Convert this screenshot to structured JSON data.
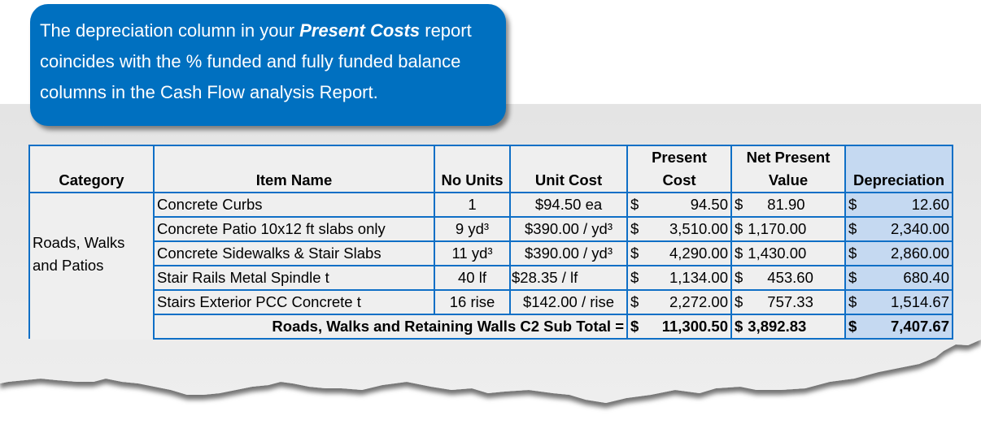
{
  "callout": {
    "text_before": "The depreciation column in your ",
    "emphasis": "Present Costs",
    "text_after": " report coincides with the % funded and fully funded balance columns in the Cash Flow analysis Report.",
    "color": "#0070c0"
  },
  "table": {
    "headers": [
      "Category",
      "Item Name",
      "No Units",
      "Unit Cost",
      "Present Cost",
      "Net Present Value",
      "Depreciation"
    ],
    "category": "Roads, Walks and Patios",
    "currency": "$",
    "rows": [
      {
        "item": "Concrete Curbs",
        "units": "1",
        "unit_cost": "$94.50 ea",
        "present_cost": "94.50",
        "npv": "81.90",
        "depreciation": "12.60"
      },
      {
        "item": "Concrete Patio 10x12 ft slabs only",
        "units": "9 yd³",
        "unit_cost": "$390.00 / yd³",
        "present_cost": "3,510.00",
        "npv": "1,170.00",
        "depreciation": "2,340.00"
      },
      {
        "item": "Concrete Sidewalks & Stair Slabs",
        "units": "11 yd³",
        "unit_cost": "$390.00 / yd³",
        "present_cost": "4,290.00",
        "npv": "1,430.00",
        "depreciation": "2,860.00"
      },
      {
        "item": "Stair Rails Metal Spindle t",
        "units": "40 lf",
        "unit_cost": "$28.35 / lf",
        "present_cost": "1,134.00",
        "npv": "453.60",
        "depreciation": "680.40"
      },
      {
        "item": "Stairs Exterior PCC Concrete t",
        "units": "16 rise",
        "unit_cost": "$142.00 / rise",
        "present_cost": "2,272.00",
        "npv": "757.33",
        "depreciation": "1,514.67"
      }
    ],
    "total": {
      "label": "Roads, Walks and Retaining Walls C2 Sub Total =",
      "present_cost": "11,300.50",
      "npv": "3,892.83",
      "depreciation": "7,407.67"
    },
    "border_color": "#0f6fc6",
    "highlight_color": "#c5d9f1"
  }
}
